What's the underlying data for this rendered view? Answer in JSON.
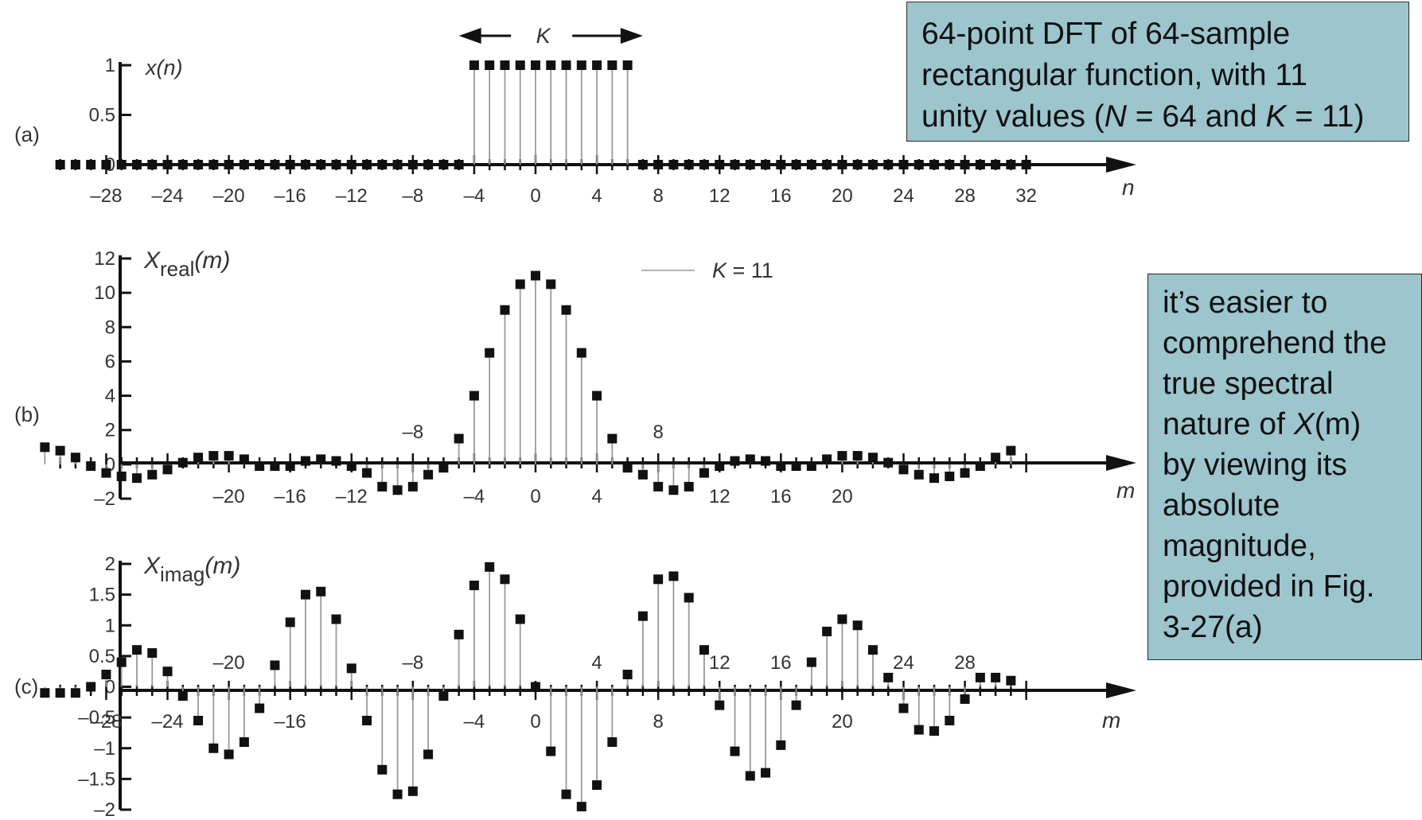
{
  "colors": {
    "callout_bg": "#9cc5cd",
    "marker": "#111111",
    "stem": "#9a9a9a",
    "axis": "#111111"
  },
  "callouts": {
    "top": [
      "64-point DFT of 64-sample",
      "rectangular function, with 11",
      "unity values (",
      "N",
      " = 64 and ",
      "K",
      " = 11)"
    ],
    "side": [
      "it’s easier to",
      "comprehend the",
      "true spectral",
      "nature of ",
      "X",
      "(m)",
      "by viewing its",
      "absolute",
      "magnitude,",
      "provided in Fig.",
      "3-27(a)"
    ]
  },
  "chart_data": [
    {
      "type": "stem",
      "panel_label": "(a)",
      "ylabel": "x(n)",
      "xlabel": "n",
      "ylim": [
        0,
        1
      ],
      "yticks": [
        "1",
        "0.5",
        "0"
      ],
      "xticks": [
        "–28",
        "–24",
        "–20",
        "–16",
        "–12",
        "–8",
        "–4",
        "0",
        "4",
        "8",
        "12",
        "16",
        "20",
        "24",
        "28",
        "32"
      ],
      "annotation": "K",
      "x": [
        -31,
        -30,
        -29,
        -28,
        -27,
        -26,
        -25,
        -24,
        -23,
        -22,
        -21,
        -20,
        -19,
        -18,
        -17,
        -16,
        -15,
        -14,
        -13,
        -12,
        -11,
        -10,
        -9,
        -8,
        -7,
        -6,
        -5,
        -4,
        -3,
        -2,
        -1,
        0,
        1,
        2,
        3,
        4,
        5,
        6,
        7,
        8,
        9,
        10,
        11,
        12,
        13,
        14,
        15,
        16,
        17,
        18,
        19,
        20,
        21,
        22,
        23,
        24,
        25,
        26,
        27,
        28,
        29,
        30,
        31,
        32
      ],
      "y": [
        0,
        0,
        0,
        0,
        0,
        0,
        0,
        0,
        0,
        0,
        0,
        0,
        0,
        0,
        0,
        0,
        0,
        0,
        0,
        0,
        0,
        0,
        0,
        0,
        0,
        0,
        0,
        1,
        1,
        1,
        1,
        1,
        1,
        1,
        1,
        1,
        1,
        1,
        0,
        0,
        0,
        0,
        0,
        0,
        0,
        0,
        0,
        0,
        0,
        0,
        0,
        0,
        0,
        0,
        0,
        0,
        0,
        0,
        0,
        0,
        0,
        0,
        0,
        0
      ]
    },
    {
      "type": "stem",
      "panel_label": "(b)",
      "ylabel": "Xreal(m)",
      "xlabel": "m",
      "ylim": [
        -2,
        12
      ],
      "yticks": [
        "12",
        "10",
        "8",
        "6",
        "4",
        "2",
        "0",
        "–2"
      ],
      "xticks_below": [
        "–20",
        "–16",
        "–12",
        "–4",
        "0",
        "4",
        "12",
        "16",
        "20"
      ],
      "xticks_above": [
        "–8",
        "8"
      ],
      "annotation": "K = 11",
      "x": [
        -32,
        -31,
        -30,
        -29,
        -28,
        -27,
        -26,
        -25,
        -24,
        -23,
        -22,
        -21,
        -20,
        -19,
        -18,
        -17,
        -16,
        -15,
        -14,
        -13,
        -12,
        -11,
        -10,
        -9,
        -8,
        -7,
        -6,
        -5,
        -4,
        -3,
        -2,
        -1,
        0,
        1,
        2,
        3,
        4,
        5,
        6,
        7,
        8,
        9,
        10,
        11,
        12,
        13,
        14,
        15,
        16,
        17,
        18,
        19,
        20,
        21,
        22,
        23,
        24,
        25,
        26,
        27,
        28,
        29,
        30,
        31
      ],
      "y": [
        1.0,
        0.8,
        0.4,
        -0.1,
        -0.5,
        -0.7,
        -0.8,
        -0.6,
        -0.3,
        0.1,
        0.4,
        0.5,
        0.5,
        0.3,
        -0.1,
        -0.1,
        -0.1,
        0.2,
        0.3,
        0.2,
        -0.1,
        -0.5,
        -1.3,
        -1.5,
        -1.3,
        -0.6,
        -0.2,
        1.5,
        4.0,
        6.5,
        9.0,
        10.5,
        11.0,
        10.5,
        9.0,
        6.5,
        4.0,
        1.5,
        -0.2,
        -0.6,
        -1.3,
        -1.5,
        -1.3,
        -0.5,
        -0.1,
        0.2,
        0.3,
        0.2,
        -0.1,
        -0.1,
        -0.1,
        0.3,
        0.5,
        0.5,
        0.4,
        0.1,
        -0.3,
        -0.6,
        -0.8,
        -0.7,
        -0.5,
        -0.1,
        0.4,
        0.8
      ]
    },
    {
      "type": "stem",
      "panel_label": "(c)",
      "ylabel": "Ximag(m)",
      "xlabel": "m",
      "ylim": [
        -2,
        2
      ],
      "yticks": [
        "2",
        "1.5",
        "1",
        "0.5",
        "0",
        "–0.5",
        "–1",
        "–1.5",
        "–2"
      ],
      "xticks_below": [
        "–28",
        "–24",
        "–16",
        "–4",
        "0",
        "8",
        "20"
      ],
      "xticks_above": [
        "–20",
        "–8",
        "4",
        "12",
        "16",
        "24",
        "28"
      ],
      "x": [
        -32,
        -31,
        -30,
        -29,
        -28,
        -27,
        -26,
        -25,
        -24,
        -23,
        -22,
        -21,
        -20,
        -19,
        -18,
        -17,
        -16,
        -15,
        -14,
        -13,
        -12,
        -11,
        -10,
        -9,
        -8,
        -7,
        -6,
        -5,
        -4,
        -3,
        -2,
        -1,
        0,
        1,
        2,
        3,
        4,
        5,
        6,
        7,
        8,
        9,
        10,
        11,
        12,
        13,
        14,
        15,
        16,
        17,
        18,
        19,
        20,
        21,
        22,
        23,
        24,
        25,
        26,
        27,
        28,
        29,
        30,
        31
      ],
      "y": [
        -0.1,
        -0.1,
        -0.1,
        0.0,
        0.2,
        0.4,
        0.6,
        0.55,
        0.25,
        -0.15,
        -0.55,
        -1.0,
        -1.1,
        -0.9,
        -0.35,
        0.35,
        1.05,
        1.5,
        1.55,
        1.1,
        0.3,
        -0.55,
        -1.35,
        -1.75,
        -1.7,
        -1.1,
        -0.15,
        0.85,
        1.65,
        1.95,
        1.75,
        1.1,
        0.0,
        -1.05,
        -1.75,
        -1.95,
        -1.6,
        -0.9,
        0.2,
        1.15,
        1.75,
        1.8,
        1.45,
        0.6,
        -0.3,
        -1.05,
        -1.45,
        -1.4,
        -0.95,
        -0.3,
        0.4,
        0.9,
        1.1,
        1.0,
        0.6,
        0.15,
        -0.35,
        -0.7,
        -0.72,
        -0.55,
        -0.2,
        0.15,
        0.15,
        0.1
      ]
    }
  ]
}
